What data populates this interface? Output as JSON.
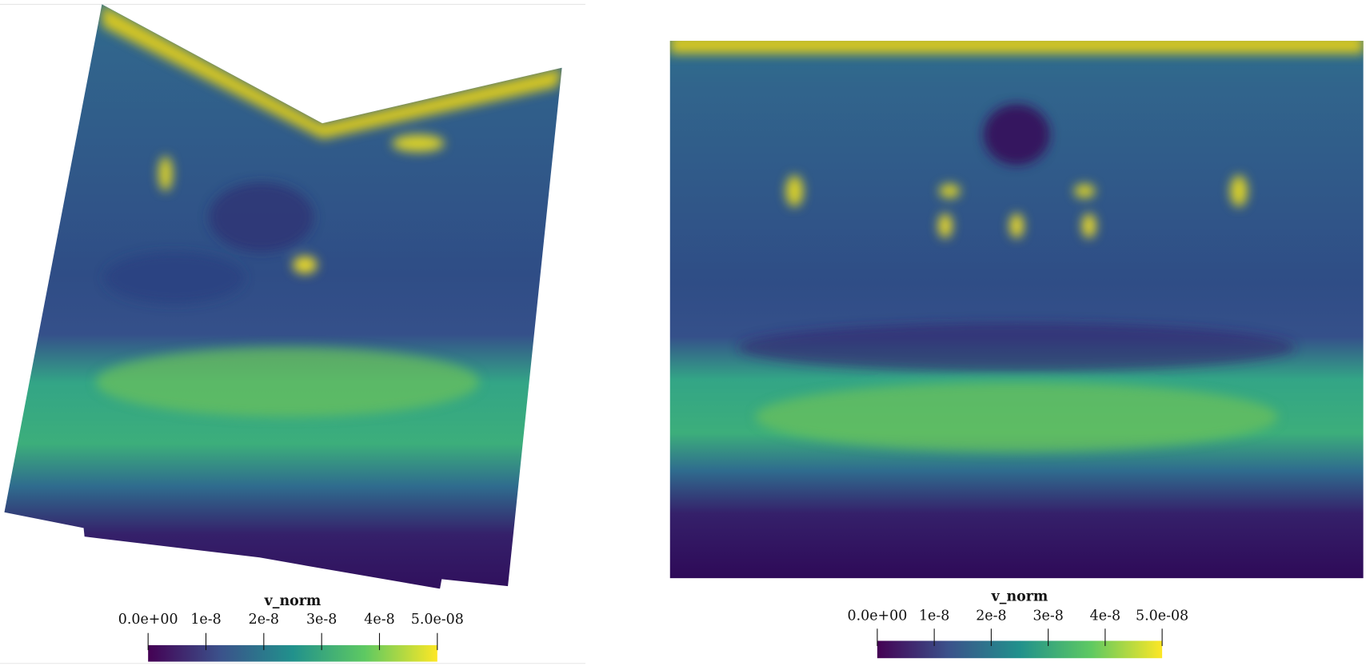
{
  "panels": [
    {
      "colorbar": {
        "title": "v_norm",
        "range": [
          0,
          5e-08
        ],
        "colormap": [
          "#440154",
          "#3b528b",
          "#21918c",
          "#5ec962",
          "#fde725"
        ],
        "ticks": [
          {
            "value": 0,
            "label": "0.0e+00"
          },
          {
            "value": 1e-08,
            "label": "1e-8"
          },
          {
            "value": 2e-08,
            "label": "2e-8"
          },
          {
            "value": 3e-08,
            "label": "3e-8"
          },
          {
            "value": 4e-08,
            "label": "4e-8"
          },
          {
            "value": 5e-08,
            "label": "5.0e-08"
          }
        ]
      }
    },
    {
      "colorbar": {
        "title": "v_norm",
        "range": [
          0,
          5e-08
        ],
        "colormap": [
          "#440154",
          "#3b528b",
          "#21918c",
          "#5ec962",
          "#fde725"
        ],
        "ticks": [
          {
            "value": 0,
            "label": "0.0e+00"
          },
          {
            "value": 1e-08,
            "label": "1e-8"
          },
          {
            "value": 2e-08,
            "label": "2e-8"
          },
          {
            "value": 3e-08,
            "label": "3e-8"
          },
          {
            "value": 4e-08,
            "label": "4e-8"
          },
          {
            "value": 5e-08,
            "label": "5.0e-08"
          }
        ]
      }
    }
  ]
}
